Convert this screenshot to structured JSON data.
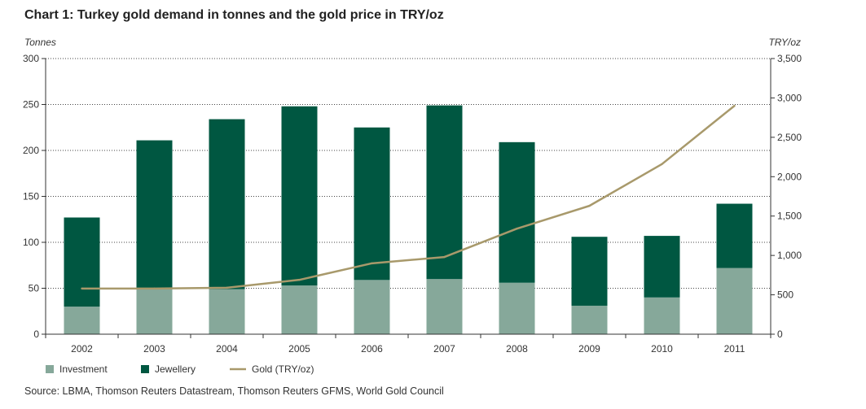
{
  "title": "Chart 1: Turkey gold demand in tonnes and the gold price in TRY/oz",
  "source": "Source: LBMA, Thomson Reuters Datastream, Thomson Reuters GFMS, World Gold Council",
  "colors": {
    "investment": "#86a89a",
    "jewellery": "#005741",
    "gold_line": "#a8996b",
    "grid": "#444444"
  },
  "chart_data": {
    "type": "bar",
    "stacked": true,
    "categories": [
      "2002",
      "2003",
      "2004",
      "2005",
      "2006",
      "2007",
      "2008",
      "2009",
      "2010",
      "2011"
    ],
    "series": [
      {
        "name": "Investment",
        "type": "bar",
        "axis": "left",
        "values": [
          30,
          49,
          49,
          53,
          59,
          60,
          56,
          31,
          40,
          72
        ]
      },
      {
        "name": "Jewellery",
        "type": "bar",
        "axis": "left",
        "values": [
          97,
          162,
          185,
          195,
          166,
          189,
          153,
          75,
          67,
          70
        ]
      },
      {
        "name": "Gold (TRY/oz)",
        "type": "line",
        "axis": "right",
        "values": [
          580,
          580,
          590,
          690,
          900,
          980,
          1340,
          1630,
          2160,
          2900
        ]
      }
    ],
    "ylabel_left": "Tonnes",
    "ylabel_right": "TRY/oz",
    "ylim_left": [
      0,
      300
    ],
    "ylim_right": [
      0,
      3500
    ],
    "yticks_left": [
      "0",
      "50",
      "100",
      "150",
      "200",
      "250",
      "300"
    ],
    "yticks_right": [
      "0",
      "500",
      "1,000",
      "1,500",
      "2,000",
      "2,500",
      "3,000",
      "3,500"
    ],
    "legend": [
      "Investment",
      "Jewellery",
      "Gold (TRY/oz)"
    ],
    "legend_position": "bottom-left",
    "grid": true
  }
}
